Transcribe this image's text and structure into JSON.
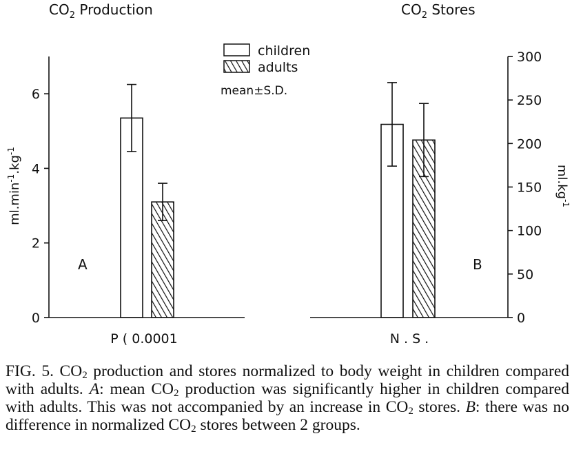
{
  "chart_data": [
    {
      "panel": "A",
      "type": "bar",
      "title": "CO2 Production",
      "ylabel": "ml.min-1.kg-1",
      "ylim": [
        0,
        7
      ],
      "yticks": [
        0,
        2,
        4,
        6
      ],
      "series": [
        {
          "name": "children",
          "pattern": "open",
          "values": [
            5.35
          ],
          "sd": [
            0.9
          ]
        },
        {
          "name": "adults",
          "pattern": "hatched",
          "values": [
            3.1
          ],
          "sd": [
            0.5
          ]
        }
      ],
      "annotation": "P ( 0.0001"
    },
    {
      "panel": "B",
      "type": "bar",
      "title": "CO2 Stores",
      "ylabel": "ml.kg-1",
      "ylim": [
        0,
        300
      ],
      "yticks": [
        0,
        50,
        100,
        150,
        200,
        250,
        300
      ],
      "series": [
        {
          "name": "children",
          "pattern": "open",
          "values": [
            222
          ],
          "sd": [
            48
          ]
        },
        {
          "name": "adults",
          "pattern": "hatched",
          "values": [
            204
          ],
          "sd": [
            42
          ]
        }
      ],
      "annotation": "N . S ."
    }
  ],
  "legend": {
    "children": "children",
    "adults": "adults",
    "stat": "mean±S.D."
  },
  "caption": {
    "fig_label": "FIG. 5.",
    "text": "CO₂ production and stores normalized to body weight in children compared with adults. A: mean CO₂ production was significantly higher in children compared with adults. This was not accompanied by an increase in CO₂ stores. B: there was no difference in normalized CO₂ stores between 2 groups."
  }
}
